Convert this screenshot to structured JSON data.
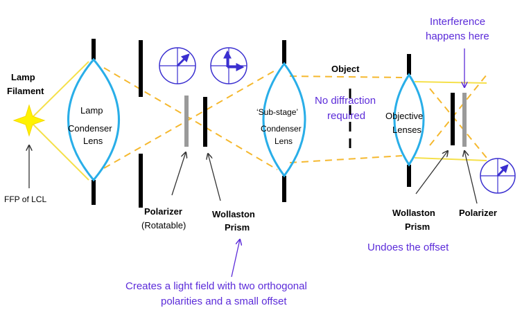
{
  "colors": {
    "lens_stroke": "#29aee8",
    "light_cone": "#f5e04a",
    "dashed_ray": "#f5b82e",
    "filament": "#fff200",
    "optics_black": "#000000",
    "polarizer_grey": "#9a9a9a",
    "note_purple": "#5b2bd9",
    "circle_icon": "#3a2fd0"
  },
  "labels": {
    "lamp_filament_line1": "Lamp",
    "lamp_filament_line2": "Filament",
    "ffp_of_lcl": "FFP of LCL",
    "lamp_condenser_line1": "Lamp",
    "lamp_condenser_line2": "Condenser",
    "lamp_condenser_line3": "Lens",
    "polarizer_1": "Polarizer",
    "polarizer_1_sub": "(Rotatable)",
    "wollaston_1_line1": "Wollaston",
    "wollaston_1_line2": "Prism",
    "substage_line1": "‘Sub-stage’",
    "substage_line2": "Condenser",
    "substage_line3": "Lens",
    "object": "Object",
    "no_diffraction_line1": "No diffraction",
    "no_diffraction_line2": "required",
    "objective_line1": "Objective",
    "objective_line2": "Lenses",
    "wollaston_2_line1": "Wollaston",
    "wollaston_2_line2": "Prism",
    "polarizer_2": "Polarizer",
    "undoes_offset": "Undoes the offset",
    "interference_line1": "Interference",
    "interference_line2": "happens here",
    "creates_line1": "Creates a light field with two orthogonal",
    "creates_line2": "polarities and a small offset"
  },
  "icons": {
    "filament": "star-burst-icon",
    "polarization_1": "single-polarization-circle-icon",
    "polarization_2": "dual-orthogonal-polarization-circle-icon",
    "polarization_3": "recombined-polarization-circle-icon"
  }
}
